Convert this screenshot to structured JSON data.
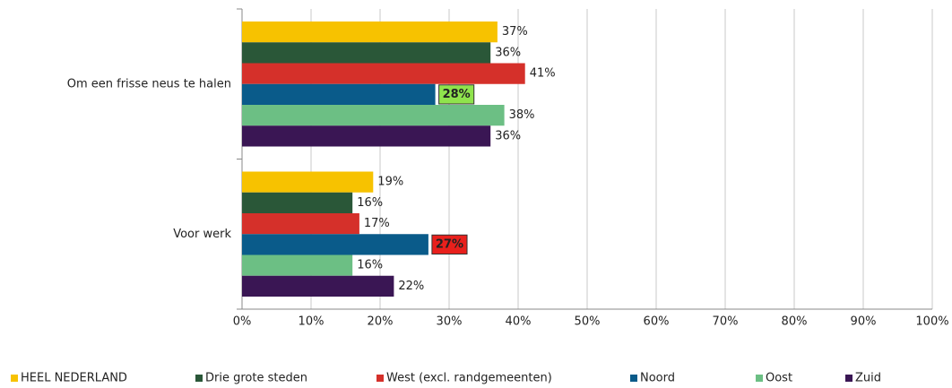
{
  "chart_data": {
    "type": "bar",
    "orientation": "horizontal",
    "categories": [
      "Om een frisse neus te halen",
      "Voor werk"
    ],
    "series": [
      {
        "name": "HEEL NEDERLAND",
        "color": "#f7c200",
        "values": [
          37,
          19
        ],
        "value_labels": [
          "37%",
          "19%"
        ]
      },
      {
        "name": "Drie grote steden",
        "color": "#2a5738",
        "values": [
          36,
          16
        ],
        "value_labels": [
          "36%",
          "16%"
        ]
      },
      {
        "name": "West (excl. randgemeenten)",
        "color": "#d5302a",
        "values": [
          41,
          17
        ],
        "value_labels": [
          "41%",
          "17%"
        ]
      },
      {
        "name": "Noord",
        "color": "#0a5b8a",
        "values": [
          28,
          27
        ],
        "value_labels": [
          "28%",
          "27%"
        ],
        "label_box_colors": [
          "#8fe34d",
          "#e8201c"
        ]
      },
      {
        "name": "Oost",
        "color": "#6cbf84",
        "values": [
          38,
          16
        ],
        "value_labels": [
          "38%",
          "16%"
        ]
      },
      {
        "name": "Zuid",
        "color": "#3a1654",
        "values": [
          36,
          22
        ],
        "value_labels": [
          "36%",
          "22%"
        ]
      }
    ],
    "xlim": [
      0,
      100
    ],
    "xticks": [
      {
        "value": 0,
        "label": "0%"
      },
      {
        "value": 10,
        "label": "10%"
      },
      {
        "value": 20,
        "label": "20%"
      },
      {
        "value": 30,
        "label": "30%"
      },
      {
        "value": 40,
        "label": "40%"
      },
      {
        "value": 50,
        "label": "50%"
      },
      {
        "value": 60,
        "label": "60%"
      },
      {
        "value": 70,
        "label": "70%"
      },
      {
        "value": 80,
        "label": "80%"
      },
      {
        "value": 90,
        "label": "90%"
      },
      {
        "value": 100,
        "label": "100%"
      }
    ],
    "grid": true,
    "legend": "bottom"
  }
}
